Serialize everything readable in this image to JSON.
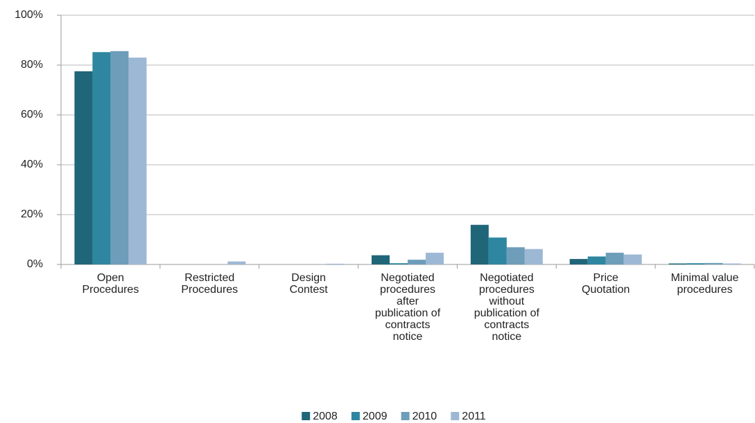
{
  "chart_data": {
    "type": "bar",
    "categories": [
      "Open Procedures",
      "Restricted Procedures",
      "Design Contest",
      "Negotiated procedures after publication of contracts notice",
      "Negotiated procedures without publication of contracts notice",
      "Price Quotation",
      "Minimal value procedures"
    ],
    "series": [
      {
        "name": "2008",
        "color": "#1f6679",
        "values": [
          77.5,
          0,
          0,
          3.7,
          15.9,
          2.2,
          0.4
        ]
      },
      {
        "name": "2009",
        "color": "#2e86a0",
        "values": [
          85.2,
          0,
          0,
          0.5,
          10.8,
          3.2,
          0.5
        ]
      },
      {
        "name": "2010",
        "color": "#6d9db8",
        "values": [
          85.6,
          0,
          0,
          1.9,
          6.9,
          4.7,
          0.6
        ]
      },
      {
        "name": "2011",
        "color": "#9db8d4",
        "values": [
          83,
          1.2,
          0.3,
          4.7,
          6.2,
          4,
          0.4
        ]
      }
    ],
    "ylim": [
      0,
      100
    ],
    "yticks": [
      {
        "value": 0,
        "label": "0%"
      },
      {
        "value": 20,
        "label": "20%"
      },
      {
        "value": 40,
        "label": "40%"
      },
      {
        "value": 60,
        "label": "60%"
      },
      {
        "value": 80,
        "label": "80%"
      },
      {
        "value": 100,
        "label": "100%"
      }
    ],
    "grid": true,
    "legend": "bottom"
  }
}
